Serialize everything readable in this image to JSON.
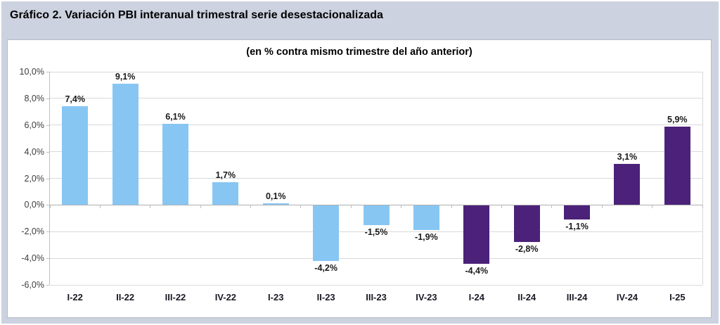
{
  "page": {
    "title": "Gráfico 2. Variación PBI interanual trimestral serie desestacionalizada"
  },
  "chart": {
    "subtitle": "(en % contra mismo trimestre del año anterior)"
  },
  "chart_data": {
    "type": "bar",
    "title": "Gráfico 2. Variación PBI interanual trimestral serie desestacionalizada",
    "subtitle": "(en % contra mismo trimestre del año anterior)",
    "categories": [
      "I-22",
      "II-22",
      "III-22",
      "IV-22",
      "I-23",
      "II-23",
      "III-23",
      "IV-23",
      "I-24",
      "II-24",
      "III-24",
      "IV-24",
      "I-25"
    ],
    "values": [
      7.4,
      9.1,
      6.1,
      1.7,
      0.1,
      -4.2,
      -1.5,
      -1.9,
      -4.4,
      -2.8,
      -1.1,
      3.1,
      5.9
    ],
    "value_labels": [
      "7,4%",
      "9,1%",
      "6,1%",
      "1,7%",
      "0,1%",
      "-4,2%",
      "-1,5%",
      "-1,9%",
      "-4,4%",
      "-2,8%",
      "-1,1%",
      "3,1%",
      "5,9%"
    ],
    "bar_colors": [
      "#87c6f3",
      "#87c6f3",
      "#87c6f3",
      "#87c6f3",
      "#87c6f3",
      "#87c6f3",
      "#87c6f3",
      "#87c6f3",
      "#4b2179",
      "#4b2179",
      "#4b2179",
      "#4b2179",
      "#4b2179"
    ],
    "color_legend": {
      "light_blue": "#87c6f3",
      "dark_purple": "#4b2179"
    },
    "xlabel": "",
    "ylabel": "",
    "ylim": [
      -6,
      10
    ],
    "ytick_step": 2,
    "ytick_values": [
      10,
      8,
      6,
      4,
      2,
      0,
      -2,
      -4,
      -6
    ],
    "ytick_labels": [
      "10,0%",
      "8,0%",
      "6,0%",
      "4,0%",
      "2,0%",
      "0,0%",
      "-2,0%",
      "-4,0%",
      "-6,0%"
    ],
    "grid": true,
    "legend": false,
    "style": {
      "page_background": "#cdd2e0",
      "panel_background": "#ffffff",
      "gridline_color": "#d9d9d9",
      "axis_color": "#bfbfbf",
      "label_color": "#1a1a1a"
    }
  }
}
